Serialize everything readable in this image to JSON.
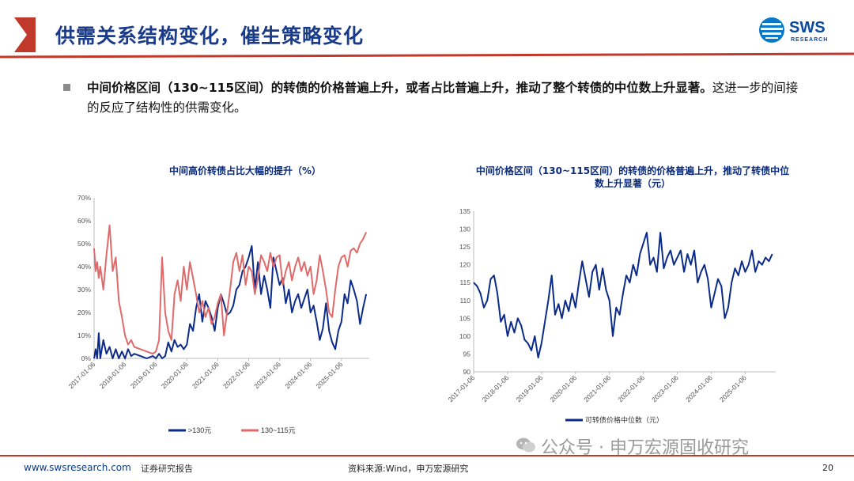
{
  "slide": {
    "title": "供需关系结构变化，催生策略变化",
    "logo_text": "SWS",
    "logo_sub": "RESEARCH",
    "bullet_bold": "中间价格区间（130~115区间）的转债的价格普遍上升，或者占比普遍上升，推动了整个转债的中位数上升显著。",
    "bullet_rest": "这进一步的间接的反应了结构性的供需变化。",
    "colors": {
      "accent": "#c0392b",
      "brand": "#0a3a8a",
      "navy": "#0b2b8a",
      "salmon": "#e06a6a"
    }
  },
  "footer": {
    "url": "www.swsresearch.com",
    "report": "证券研究报告",
    "source": "资料来源:Wind，申万宏源研究",
    "page": "20",
    "watermark": "公众号 · 申万宏源固收研究"
  },
  "chart_data": [
    {
      "type": "line",
      "title": "中间高价转债占比大幅的提升（%）",
      "ylim": [
        0,
        70
      ],
      "yticks": [
        "0%",
        "10%",
        "20%",
        "30%",
        "40%",
        "50%",
        "60%",
        "70%"
      ],
      "xticks": [
        "2017-01-06",
        "2018-01-06",
        "2019-01-06",
        "2020-01-06",
        "2021-01-06",
        "2022-01-06",
        "2023-01-06",
        "2024-01-06",
        "2025-01-06"
      ],
      "legend_position": "bottom",
      "grid": false,
      "series": [
        {
          "name": ">130元",
          "color": "#0b2b8a",
          "x": [
            2017.0,
            2017.05,
            2017.1,
            2017.15,
            2017.2,
            2017.3,
            2017.4,
            2017.5,
            2017.6,
            2017.7,
            2017.8,
            2017.9,
            2018.0,
            2018.1,
            2018.2,
            2018.3,
            2018.5,
            2018.7,
            2018.9,
            2019.0,
            2019.1,
            2019.2,
            2019.3,
            2019.4,
            2019.5,
            2019.6,
            2019.7,
            2019.8,
            2019.9,
            2020.0,
            2020.1,
            2020.2,
            2020.3,
            2020.4,
            2020.5,
            2020.6,
            2020.7,
            2020.8,
            2020.9,
            2021.0,
            2021.1,
            2021.2,
            2021.3,
            2021.4,
            2021.5,
            2021.6,
            2021.7,
            2021.8,
            2021.9,
            2022.0,
            2022.1,
            2022.2,
            2022.3,
            2022.4,
            2022.5,
            2022.6,
            2022.7,
            2022.8,
            2022.9,
            2023.0,
            2023.1,
            2023.2,
            2023.3,
            2023.4,
            2023.5,
            2023.6,
            2023.7,
            2023.8,
            2023.9,
            2024.0,
            2024.1,
            2024.2,
            2024.3,
            2024.4,
            2024.5,
            2024.6,
            2024.7,
            2024.8,
            2024.9,
            2025.0,
            2025.1,
            2025.2,
            2025.3,
            2025.4,
            2025.5,
            2025.6,
            2025.7,
            2025.8
          ],
          "values": [
            0,
            4,
            0,
            11,
            0,
            8,
            2,
            5,
            0,
            4,
            0,
            3,
            0,
            4,
            1,
            2,
            1,
            0,
            1,
            0,
            2,
            0,
            1,
            7,
            3,
            8,
            5,
            6,
            4,
            6,
            15,
            12,
            22,
            28,
            16,
            25,
            22,
            18,
            12,
            22,
            28,
            24,
            19,
            20,
            23,
            30,
            32,
            38,
            40,
            44,
            49,
            30,
            42,
            28,
            36,
            30,
            22,
            44,
            38,
            32,
            35,
            24,
            30,
            20,
            25,
            28,
            22,
            26,
            30,
            20,
            23,
            16,
            8,
            13,
            24,
            12,
            7,
            4,
            12,
            16,
            28,
            24,
            34,
            30,
            25,
            15,
            22,
            28
          ]
        },
        {
          "name": "130~115元",
          "color": "#e06a6a",
          "x": [
            2017.0,
            2017.05,
            2017.1,
            2017.15,
            2017.2,
            2017.3,
            2017.4,
            2017.5,
            2017.6,
            2017.7,
            2017.8,
            2017.9,
            2018.0,
            2018.1,
            2018.2,
            2018.3,
            2018.5,
            2018.7,
            2018.9,
            2019.0,
            2019.1,
            2019.2,
            2019.3,
            2019.4,
            2019.5,
            2019.6,
            2019.7,
            2019.8,
            2019.9,
            2020.0,
            2020.1,
            2020.2,
            2020.3,
            2020.4,
            2020.5,
            2020.6,
            2020.7,
            2020.8,
            2020.9,
            2021.0,
            2021.1,
            2021.2,
            2021.3,
            2021.4,
            2021.5,
            2021.6,
            2021.7,
            2021.8,
            2021.9,
            2022.0,
            2022.1,
            2022.2,
            2022.3,
            2022.4,
            2022.5,
            2022.6,
            2022.7,
            2022.8,
            2022.9,
            2023.0,
            2023.1,
            2023.2,
            2023.3,
            2023.4,
            2023.5,
            2023.6,
            2023.7,
            2023.8,
            2023.9,
            2024.0,
            2024.1,
            2024.2,
            2024.3,
            2024.4,
            2024.5,
            2024.6,
            2024.7,
            2024.8,
            2024.9,
            2025.0,
            2025.1,
            2025.2,
            2025.3,
            2025.4,
            2025.5,
            2025.6,
            2025.7,
            2025.8
          ],
          "values": [
            48,
            38,
            42,
            35,
            40,
            30,
            45,
            58,
            38,
            44,
            25,
            18,
            10,
            6,
            8,
            5,
            4,
            3,
            2,
            3,
            8,
            44,
            20,
            12,
            8,
            28,
            34,
            25,
            40,
            30,
            42,
            35,
            28,
            20,
            25,
            18,
            22,
            15,
            18,
            24,
            28,
            10,
            20,
            30,
            42,
            46,
            38,
            45,
            32,
            40,
            38,
            28,
            35,
            45,
            42,
            38,
            46,
            40,
            44,
            45,
            32,
            38,
            42,
            34,
            40,
            44,
            38,
            42,
            36,
            40,
            28,
            34,
            45,
            38,
            30,
            20,
            18,
            30,
            40,
            44,
            45,
            40,
            47,
            48,
            46,
            50,
            52,
            55
          ]
        }
      ]
    },
    {
      "type": "line",
      "title": "中间价格区间（130~115区间）的转债的价格普遍上升，推动了转债中位数上升显著（元）",
      "ylim": [
        90,
        135
      ],
      "yticks": [
        "90",
        "95",
        "100",
        "105",
        "110",
        "115",
        "120",
        "125",
        "130",
        "135"
      ],
      "xticks": [
        "2017-01-06",
        "2018-01-06",
        "2019-01-06",
        "2020-01-06",
        "2021-01-06",
        "2022-01-06",
        "2023-01-06",
        "2024-01-06",
        "2025-01-06"
      ],
      "legend_position": "bottom",
      "grid": false,
      "series": [
        {
          "name": "可转债价格中位数（元）",
          "color": "#0b2b8a",
          "x": [
            2017.0,
            2017.1,
            2017.2,
            2017.3,
            2017.4,
            2017.5,
            2017.6,
            2017.7,
            2017.8,
            2017.9,
            2018.0,
            2018.1,
            2018.2,
            2018.3,
            2018.4,
            2018.5,
            2018.6,
            2018.7,
            2018.8,
            2018.9,
            2019.0,
            2019.1,
            2019.2,
            2019.3,
            2019.4,
            2019.5,
            2019.6,
            2019.7,
            2019.8,
            2019.9,
            2020.0,
            2020.1,
            2020.2,
            2020.3,
            2020.4,
            2020.5,
            2020.6,
            2020.7,
            2020.8,
            2020.9,
            2021.0,
            2021.1,
            2021.2,
            2021.3,
            2021.4,
            2021.5,
            2021.6,
            2021.7,
            2021.8,
            2021.9,
            2022.0,
            2022.1,
            2022.2,
            2022.3,
            2022.4,
            2022.5,
            2022.6,
            2022.7,
            2022.8,
            2022.9,
            2023.0,
            2023.1,
            2023.2,
            2023.3,
            2023.4,
            2023.5,
            2023.6,
            2023.7,
            2023.8,
            2023.9,
            2024.0,
            2024.1,
            2024.2,
            2024.3,
            2024.4,
            2024.5,
            2024.6,
            2024.7,
            2024.8,
            2024.9,
            2025.0,
            2025.1,
            2025.2,
            2025.3,
            2025.4,
            2025.5,
            2025.6,
            2025.7,
            2025.8
          ],
          "values": [
            115,
            114,
            112,
            108,
            110,
            116,
            117,
            112,
            104,
            106,
            100,
            104,
            101,
            105,
            103,
            99,
            98,
            96,
            100,
            94,
            98,
            104,
            110,
            117,
            106,
            109,
            105,
            110,
            107,
            112,
            108,
            115,
            121,
            116,
            111,
            118,
            120,
            113,
            119,
            113,
            110,
            100,
            108,
            106,
            112,
            117,
            115,
            120,
            117,
            123,
            126,
            129,
            120,
            122,
            118,
            129,
            119,
            122,
            124,
            120,
            122,
            124,
            118,
            123,
            120,
            124,
            115,
            118,
            120,
            116,
            108,
            112,
            116,
            114,
            105,
            108,
            115,
            119,
            117,
            121,
            118,
            120,
            124,
            118,
            121,
            120,
            122,
            121,
            123
          ]
        }
      ]
    }
  ]
}
